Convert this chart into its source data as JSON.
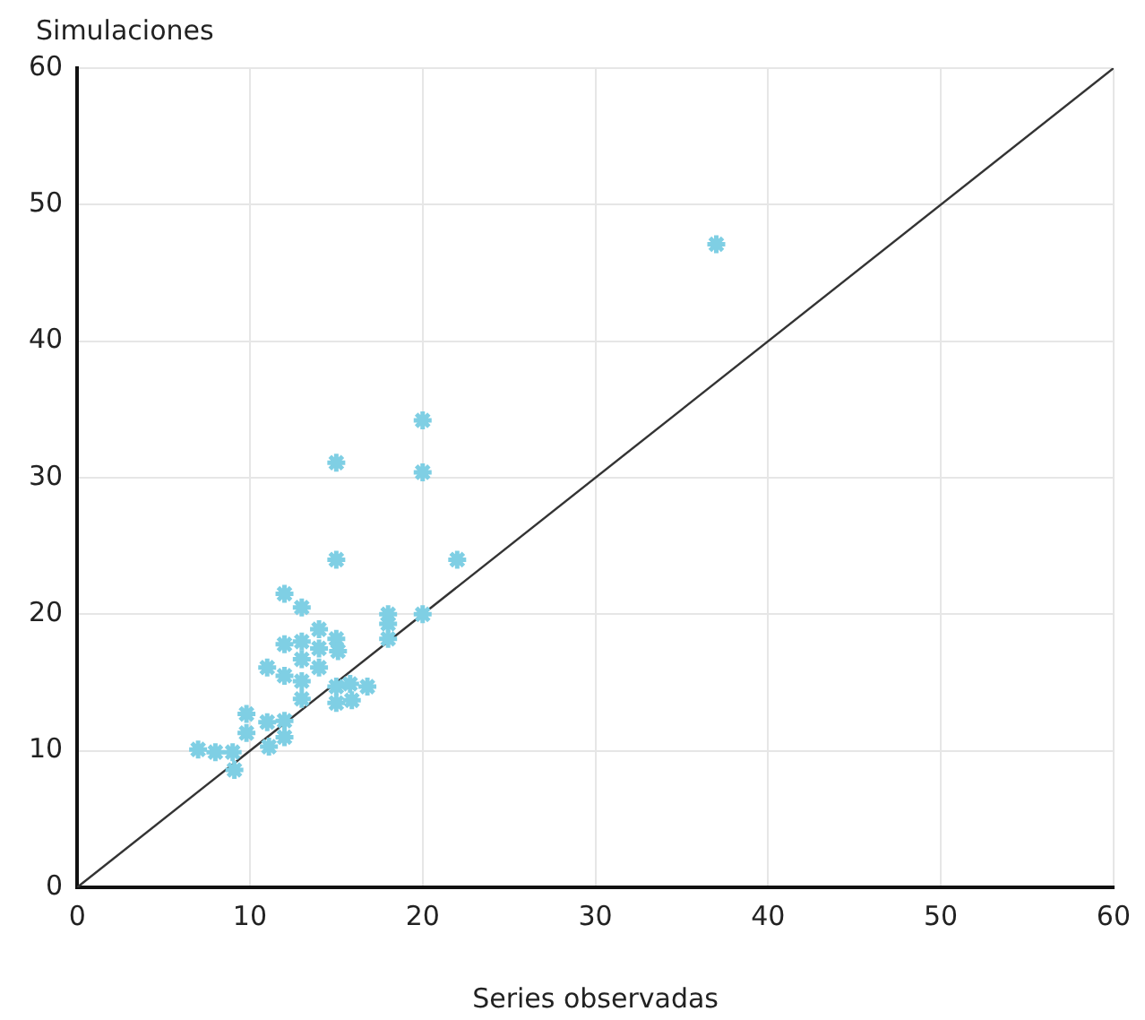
{
  "chart_data": {
    "type": "scatter",
    "xlabel": "Series observadas",
    "ylabel": "Simulaciones",
    "xlim": [
      0,
      60
    ],
    "ylim": [
      0,
      60
    ],
    "xticks": [
      0,
      10,
      20,
      30,
      40,
      50,
      60
    ],
    "yticks": [
      0,
      10,
      20,
      30,
      40,
      50,
      60
    ],
    "grid": true,
    "legend": false,
    "marker": "cross",
    "series": [
      {
        "color": "#7fcfe4",
        "x": [
          15,
          22,
          12,
          13,
          18,
          20,
          18,
          18,
          14,
          13,
          15,
          15.1,
          12,
          14,
          13,
          14,
          11,
          12,
          13,
          15,
          15.8,
          16.8,
          13,
          15,
          15.9,
          9.8,
          11,
          12,
          9.8,
          12,
          11.1,
          7,
          8,
          9,
          9.1,
          20,
          15,
          20,
          37
        ],
        "values": [
          24,
          24,
          21.5,
          20.5,
          20,
          20,
          19.3,
          18.2,
          18.9,
          18,
          18.2,
          17.3,
          17.8,
          17.5,
          16.7,
          16.1,
          16.1,
          15.5,
          15.1,
          14.7,
          14.9,
          14.7,
          13.8,
          13.5,
          13.7,
          12.7,
          12.1,
          12.2,
          11.3,
          11,
          10.3,
          10.1,
          9.9,
          9.9,
          8.6,
          34.2,
          31.1,
          30.4,
          47.1
        ]
      },
      {
        "type": "line",
        "color": "#333333",
        "x": [
          0,
          60
        ],
        "values": [
          0,
          60
        ],
        "marker": "none"
      }
    ]
  }
}
